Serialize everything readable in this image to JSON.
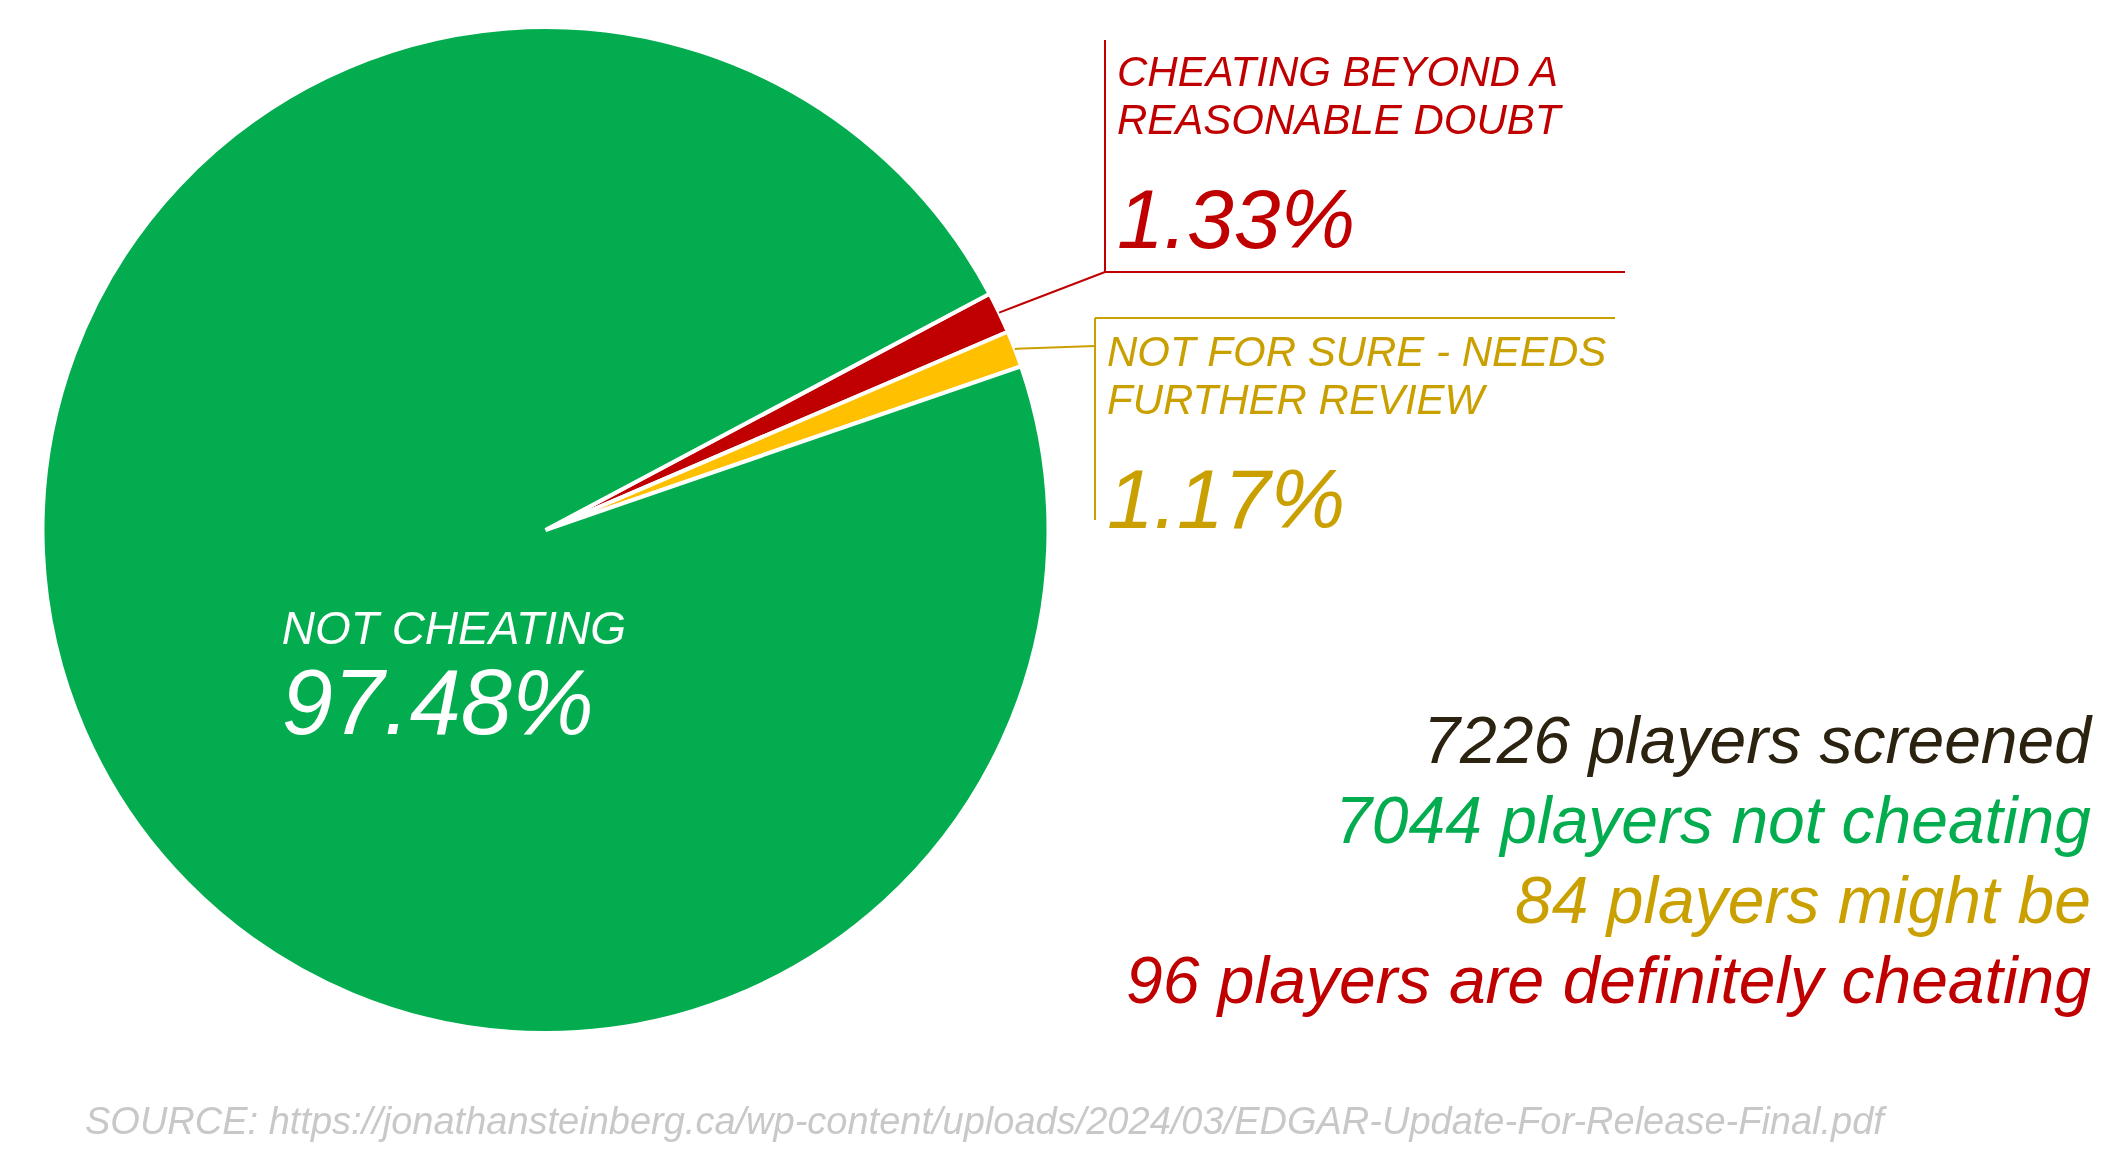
{
  "chart_data": {
    "type": "pie",
    "categories": [
      "CHEATING BEYOND A REASONABLE DOUBT",
      "NOT FOR SURE - NEEDS FURTHER REVIEW",
      "NOT CHEATING"
    ],
    "values": [
      1.33,
      1.17,
      97.48
    ],
    "value_labels": [
      "1.33%",
      "1.17%",
      "97.48%"
    ],
    "colors": [
      "#c00000",
      "#ffc000",
      "#03ad4f"
    ],
    "legend": false,
    "annotations": [
      "7226 players screened",
      "7044 players not cheating",
      "84 players might be",
      "96 players are definitely cheating",
      "SOURCE:  https://jonathansteinberg.ca/wp-content/uploads/2024/03/EDGAR-Update-For-Release-Final.pdf"
    ]
  }
}
